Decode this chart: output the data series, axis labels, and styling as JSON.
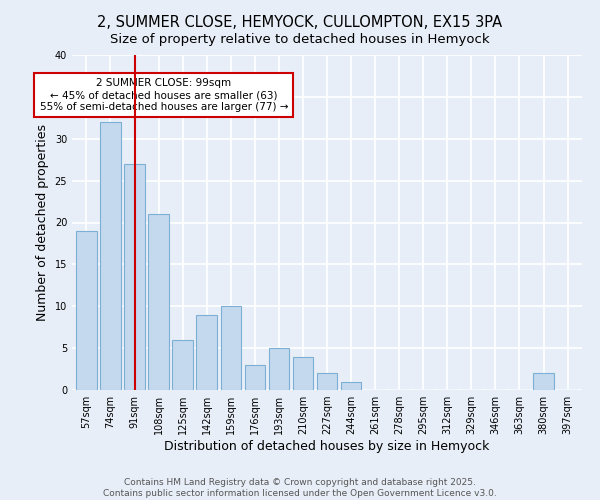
{
  "title": "2, SUMMER CLOSE, HEMYOCK, CULLOMPTON, EX15 3PA",
  "subtitle": "Size of property relative to detached houses in Hemyock",
  "xlabel": "Distribution of detached houses by size in Hemyock",
  "ylabel": "Number of detached properties",
  "categories": [
    "57sqm",
    "74sqm",
    "91sqm",
    "108sqm",
    "125sqm",
    "142sqm",
    "159sqm",
    "176sqm",
    "193sqm",
    "210sqm",
    "227sqm",
    "244sqm",
    "261sqm",
    "278sqm",
    "295sqm",
    "312sqm",
    "329sqm",
    "346sqm",
    "363sqm",
    "380sqm",
    "397sqm"
  ],
  "values": [
    19,
    32,
    27,
    21,
    6,
    9,
    10,
    3,
    5,
    4,
    2,
    1,
    0,
    0,
    0,
    0,
    0,
    0,
    0,
    2,
    0
  ],
  "bar_color": "#c5d9ee",
  "bar_edgecolor": "#7bafd4",
  "vline_x_index": 2,
  "vline_color": "#cc0000",
  "annotation_text": "2 SUMMER CLOSE: 99sqm\n← 45% of detached houses are smaller (63)\n55% of semi-detached houses are larger (77) →",
  "annotation_box_edgecolor": "#cc0000",
  "annotation_box_facecolor": "#ffffff",
  "ylim": [
    0,
    40
  ],
  "yticks": [
    0,
    5,
    10,
    15,
    20,
    25,
    30,
    35,
    40
  ],
  "footer_text": "Contains HM Land Registry data © Crown copyright and database right 2025.\nContains public sector information licensed under the Open Government Licence v3.0.",
  "background_color": "#e8eef7",
  "grid_color": "#ffffff",
  "title_fontsize": 10.5,
  "subtitle_fontsize": 9.5,
  "axis_label_fontsize": 9,
  "tick_fontsize": 7,
  "annotation_fontsize": 7.5,
  "footer_fontsize": 6.5
}
